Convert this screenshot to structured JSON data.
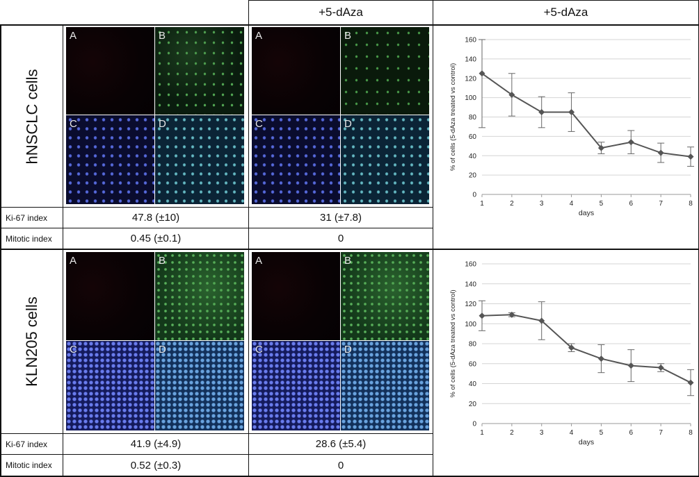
{
  "header": {
    "col2": "+5-dAza",
    "col3": "+5-dAza"
  },
  "panel_letters": [
    "A",
    "B",
    "C",
    "D"
  ],
  "rows": [
    {
      "label": "hNSCLC cells",
      "ki67_label": "Ki-67 index",
      "ki67_control": "47.8 (±10)",
      "ki67_treated": "31 (±7.8)",
      "mitotic_label": "Mitotic index",
      "mitotic_control": "0.45 (±0.1)",
      "mitotic_treated": "0"
    },
    {
      "label": "KLN205 cells",
      "ki67_label": "Ki-67 index",
      "ki67_control": "41.9 (±4.9)",
      "ki67_treated": "28.6 (±5.4)",
      "mitotic_label": "Mitotic index",
      "mitotic_control": "0.52 (±0.3)",
      "mitotic_treated": "0"
    }
  ],
  "chart_data": [
    {
      "type": "line",
      "xlabel": "days",
      "ylabel": "% of cells (5-dAza treated vs control)",
      "x": [
        1,
        2,
        3,
        4,
        5,
        6,
        7,
        8
      ],
      "ylim": [
        0,
        160
      ],
      "yticks": [
        0,
        20,
        40,
        60,
        80,
        100,
        120,
        140,
        160
      ],
      "series": [
        {
          "values": [
            125,
            103,
            85,
            85,
            48,
            54,
            43,
            39
          ],
          "error": [
            56,
            22,
            16,
            20,
            6,
            12,
            10,
            10
          ]
        }
      ],
      "color": "#555555"
    },
    {
      "type": "line",
      "xlabel": "days",
      "ylabel": "% of cells (5-dAza treated vs control)",
      "x": [
        1,
        2,
        3,
        4,
        5,
        6,
        7,
        8
      ],
      "ylim": [
        0,
        160
      ],
      "yticks": [
        0,
        20,
        40,
        60,
        80,
        100,
        120,
        140,
        160
      ],
      "series": [
        {
          "values": [
            108,
            109,
            103,
            76,
            65,
            58,
            56,
            41
          ],
          "error": [
            15,
            2,
            19,
            4,
            14,
            16,
            4,
            13
          ]
        }
      ],
      "color": "#555555"
    }
  ]
}
